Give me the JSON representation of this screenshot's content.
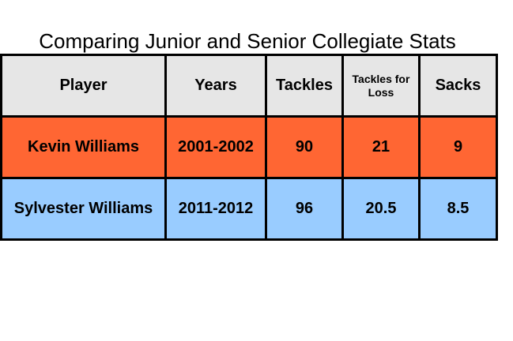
{
  "chart_data": {
    "type": "table",
    "title": "Comparing Junior and Senior Collegiate Stats",
    "columns": [
      "Player",
      "Years",
      "Tackles",
      "Tackles for Loss",
      "Sacks"
    ],
    "rows": [
      {
        "player": "Kevin Williams",
        "years": "2001-2002",
        "tackles": "90",
        "tackles_for_loss": "21",
        "sacks": "9",
        "color": "#ff6633"
      },
      {
        "player": "Sylvester Williams",
        "years": "2011-2012",
        "tackles": "96",
        "tackles_for_loss": "20.5",
        "sacks": "8.5",
        "color": "#99ccff"
      }
    ],
    "header_color": "#e6e6e6"
  }
}
